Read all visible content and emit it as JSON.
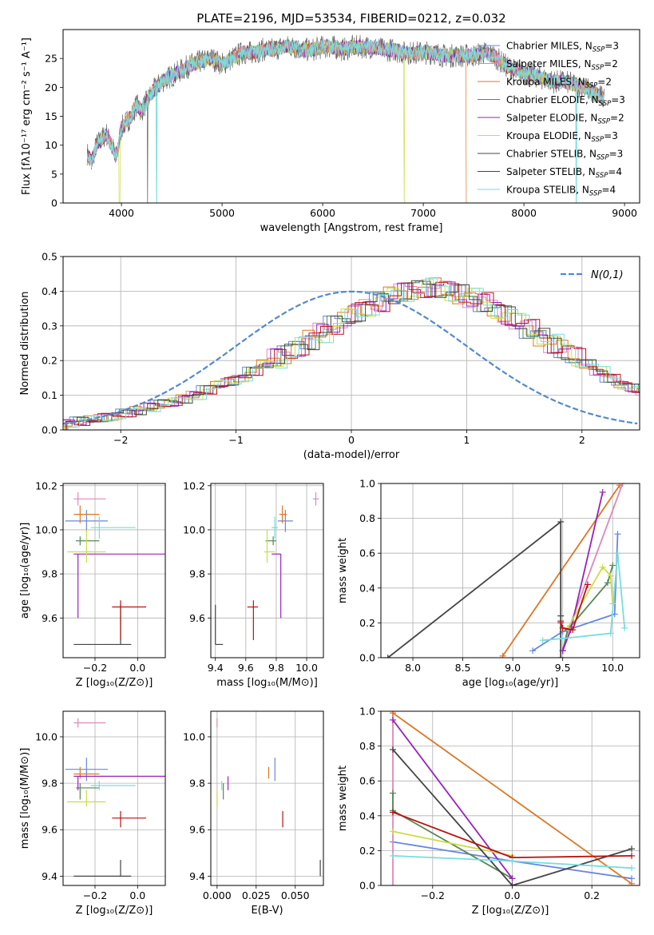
{
  "colors": [
    "#6688dd",
    "#dd88bb",
    "#dd7722",
    "#558855",
    "#9922bb",
    "#ccdd44",
    "#444444",
    "#bb1111",
    "#77dddd"
  ],
  "chart_data": [
    {
      "type": "line",
      "title": "PLATE=2196, MJD=53534, FIBERID=0212, z=0.032",
      "xlabel": "wavelength [Angstrom, rest frame]",
      "ylabel": "Flux [fλ10⁻¹⁷ erg cm⁻² s⁻¹ A⁻¹]",
      "xlim": [
        3420,
        9150
      ],
      "ylim": [
        0,
        30
      ],
      "xticks": [
        4000,
        5000,
        6000,
        7000,
        8000,
        9000
      ],
      "yticks": [
        0,
        5,
        10,
        15,
        20,
        25
      ],
      "grid": false,
      "legend_position": "top-right",
      "continuum": {
        "x": [
          3650,
          3700,
          3750,
          3800,
          3850,
          3900,
          3950,
          4000,
          4050,
          4100,
          4150,
          4200,
          4300,
          4400,
          4500,
          4600,
          4700,
          4800,
          4900,
          5000,
          5100,
          5200,
          5300,
          5400,
          5500,
          5600,
          5700,
          5800,
          5900,
          6000,
          6100,
          6200,
          6300,
          6400,
          6500,
          6600,
          6700,
          6800,
          6900,
          7000,
          7100,
          7200,
          7300,
          7400,
          7500,
          7600,
          7700,
          7800,
          7900,
          8000,
          8100,
          8200,
          8300,
          8400,
          8500,
          8600,
          8700,
          8800
        ],
        "y": [
          9,
          7,
          10,
          11,
          12,
          10,
          8,
          13,
          14,
          15,
          17,
          16,
          19,
          21,
          22,
          23,
          24,
          24.5,
          25,
          24,
          25,
          26,
          26,
          26.5,
          26.5,
          27,
          27,
          26.5,
          26.5,
          27,
          27,
          26.5,
          27,
          27,
          27,
          26.5,
          26.5,
          26,
          26,
          26,
          26,
          25.5,
          25.5,
          25.5,
          25.5,
          26,
          25.5,
          24,
          23,
          22.5,
          22,
          21.5,
          21,
          21,
          20.5,
          20,
          19,
          18
        ]
      },
      "series": [
        {
          "name": "Chabrier MILES, N_SSP=3"
        },
        {
          "name": "Salpeter MILES, N_SSP=2"
        },
        {
          "name": "Kroupa MILES, N_SSP=2"
        },
        {
          "name": "Chabrier ELODIE, N_SSP=3"
        },
        {
          "name": "Salpeter ELODIE, N_SSP=2"
        },
        {
          "name": "Kroupa ELODIE, N_SSP=3"
        },
        {
          "name": "Chabrier STELIB, N_SSP=3"
        },
        {
          "name": "Salpeter STELIB, N_SSP=4"
        },
        {
          "name": "Kroupa STELIB, N_SSP=4"
        }
      ],
      "legend_labels": [
        {
          "pre": "Chabrier MILES, N",
          "sub": "SSP",
          "post": "=3"
        },
        {
          "pre": "Salpeter MILES, N",
          "sub": "SSP",
          "post": "=2"
        },
        {
          "pre": "Kroupa MILES, N",
          "sub": "SSP",
          "post": "=2"
        },
        {
          "pre": "Chabrier ELODIE, N",
          "sub": "SSP",
          "post": "=3"
        },
        {
          "pre": "Salpeter ELODIE, N",
          "sub": "SSP",
          "post": "=2"
        },
        {
          "pre": "Kroupa ELODIE, N",
          "sub": "SSP",
          "post": "=3"
        },
        {
          "pre": "Chabrier STELIB, N",
          "sub": "SSP",
          "post": "=3"
        },
        {
          "pre": "Salpeter STELIB, N",
          "sub": "SSP",
          "post": "=4"
        },
        {
          "pre": "Kroupa STELIB, N",
          "sub": "SSP",
          "post": "=4"
        }
      ]
    },
    {
      "type": "bar",
      "xlabel": "(data-model)/error",
      "ylabel": "Normed distribution",
      "xlim": [
        -2.5,
        2.5
      ],
      "ylim": [
        0,
        0.5
      ],
      "xticks": [
        -2,
        -1,
        0,
        1,
        2
      ],
      "yticks": [
        0.0,
        0.1,
        0.2,
        0.3,
        0.4,
        0.5
      ],
      "grid": true,
      "legend_position": "top-right",
      "legend_label": "N(0,1)",
      "bin_width": 0.1,
      "bin_start": -2.5,
      "base_hist": [
        0.02,
        0.025,
        0.03,
        0.035,
        0.04,
        0.05,
        0.055,
        0.065,
        0.075,
        0.08,
        0.09,
        0.1,
        0.115,
        0.13,
        0.14,
        0.15,
        0.17,
        0.19,
        0.205,
        0.22,
        0.24,
        0.26,
        0.28,
        0.3,
        0.32,
        0.34,
        0.355,
        0.37,
        0.385,
        0.395,
        0.405,
        0.41,
        0.41,
        0.4,
        0.39,
        0.38,
        0.37,
        0.35,
        0.33,
        0.31,
        0.29,
        0.27,
        0.25,
        0.23,
        0.21,
        0.19,
        0.17,
        0.15,
        0.13,
        0.12,
        0.11,
        0.1,
        0.085,
        0.075,
        0.065,
        0.055,
        0.05,
        0.04,
        0.035,
        0.03,
        0.025,
        0.02,
        0.018,
        0.016,
        0.015,
        0.014,
        0.013,
        0.012,
        0.012,
        0.012
      ]
    },
    {
      "type": "scatter",
      "xlabel": "Z [log₁₀(Z/Z⊙)]",
      "ylabel": "age  [log₁₀(age/yr)]",
      "xlim": [
        -0.35,
        0.13
      ],
      "ylim": [
        9.42,
        10.21
      ],
      "xticks": [
        -0.2,
        0.0
      ],
      "yticks": [
        9.6,
        9.8,
        10.0,
        10.2
      ],
      "grid": true,
      "points": [
        {
          "x": -0.24,
          "y": 10.04,
          "xe": [
            0.1,
            0.1
          ],
          "ye": [
            0.05,
            0.05
          ],
          "c": 0
        },
        {
          "x": -0.28,
          "y": 10.14,
          "xe": [
            0.02,
            0.13
          ],
          "ye": [
            0.03,
            0.03
          ],
          "c": 1
        },
        {
          "x": -0.27,
          "y": 10.07,
          "xe": [
            0.03,
            0.09
          ],
          "ye": [
            0.04,
            0.04
          ],
          "c": 2
        },
        {
          "x": -0.27,
          "y": 9.95,
          "xe": [
            0.02,
            0.09
          ],
          "ye": [
            0.02,
            0.02
          ],
          "c": 3
        },
        {
          "x": -0.28,
          "y": 9.89,
          "xe": [
            0.02,
            0.43
          ],
          "ye": [
            0.29,
            0.0
          ],
          "c": 4
        },
        {
          "x": -0.24,
          "y": 9.9,
          "xe": [
            0.09,
            0.09
          ],
          "ye": [
            0.05,
            0.1
          ],
          "c": 5
        },
        {
          "x": -0.08,
          "y": 9.48,
          "xe": [
            0.22,
            0.05
          ],
          "ye": [
            0.0,
            0.18
          ],
          "c": 6
        },
        {
          "x": -0.08,
          "y": 9.65,
          "xe": [
            0.04,
            0.12
          ],
          "ye": [
            0.15,
            0.03
          ],
          "c": 7
        },
        {
          "x": -0.18,
          "y": 10.01,
          "xe": [
            0.04,
            0.17
          ],
          "ye": [
            0.05,
            0.05
          ],
          "c": 8
        }
      ]
    },
    {
      "type": "scatter",
      "xlabel": "mass [log₁₀(M/M⊙)]",
      "ylabel": "",
      "xlim": [
        9.37,
        10.11
      ],
      "ylim": [
        9.42,
        10.21
      ],
      "xticks": [
        9.4,
        9.6,
        9.8,
        10.0
      ],
      "yticks": [
        9.6,
        9.8,
        10.0,
        10.2
      ],
      "grid": true,
      "points": [
        {
          "x": 9.86,
          "y": 10.04,
          "xe": [
            0.05,
            0.05
          ],
          "ye": [
            0.05,
            0.05
          ],
          "c": 0
        },
        {
          "x": 10.06,
          "y": 10.14,
          "xe": [
            0.02,
            0.02
          ],
          "ye": [
            0.03,
            0.03
          ],
          "c": 1
        },
        {
          "x": 9.84,
          "y": 10.07,
          "xe": [
            0.02,
            0.03
          ],
          "ye": [
            0.04,
            0.04
          ],
          "c": 2
        },
        {
          "x": 9.78,
          "y": 9.95,
          "xe": [
            0.05,
            0.02
          ],
          "ye": [
            0.02,
            0.02
          ],
          "c": 3
        },
        {
          "x": 9.83,
          "y": 9.89,
          "xe": [
            0.06,
            0.0
          ],
          "ye": [
            0.29,
            0.0
          ],
          "c": 4
        },
        {
          "x": 9.74,
          "y": 9.9,
          "xe": [
            0.02,
            0.05
          ],
          "ye": [
            0.05,
            0.1
          ],
          "c": 5
        },
        {
          "x": 9.4,
          "y": 9.48,
          "xe": [
            0.0,
            0.05
          ],
          "ye": [
            0.0,
            0.18
          ],
          "c": 6
        },
        {
          "x": 9.65,
          "y": 9.65,
          "xe": [
            0.04,
            0.03
          ],
          "ye": [
            0.15,
            0.03
          ],
          "c": 7
        },
        {
          "x": 9.79,
          "y": 10.01,
          "xe": [
            0.02,
            0.02
          ],
          "ye": [
            0.05,
            0.05
          ],
          "c": 8
        }
      ]
    },
    {
      "type": "line",
      "xlabel": "age  [log₁₀(age/yr)]",
      "ylabel": "mass weight",
      "xlim": [
        7.68,
        10.27
      ],
      "ylim": [
        0,
        1
      ],
      "xticks": [
        8.0,
        8.5,
        9.0,
        9.5,
        10.0
      ],
      "yticks": [
        0.0,
        0.2,
        0.4,
        0.6,
        0.8,
        1.0
      ],
      "grid": true,
      "series": [
        {
          "c": 0,
          "x": [
            9.2,
            9.5,
            10.02,
            10.05
          ],
          "y": [
            0.04,
            0.15,
            0.25,
            0.71
          ]
        },
        {
          "c": 1,
          "x": [
            9.5,
            9.55,
            10.1
          ],
          "y": [
            0.04,
            0.15,
            1.0
          ]
        },
        {
          "c": 2,
          "x": [
            8.9,
            10.07
          ],
          "y": [
            0.01,
            0.99
          ]
        },
        {
          "c": 3,
          "x": [
            9.5,
            9.55,
            9.95,
            10.0
          ],
          "y": [
            0.04,
            0.16,
            0.43,
            0.53
          ]
        },
        {
          "c": 4,
          "x": [
            9.5,
            9.58,
            9.9
          ],
          "y": [
            0.04,
            0.16,
            0.95
          ]
        },
        {
          "c": 5,
          "x": [
            9.55,
            9.9,
            9.98,
            10.0
          ],
          "y": [
            0.17,
            0.52,
            0.47,
            0.31
          ]
        },
        {
          "c": 6,
          "x": [
            7.75,
            9.48,
            9.48,
            9.48,
            9.48
          ],
          "y": [
            0.0,
            0.78,
            0.24,
            0.21,
            0.0
          ]
        },
        {
          "c": 7,
          "x": [
            9.48,
            9.5,
            9.6,
            9.75
          ],
          "y": [
            0.2,
            0.17,
            0.16,
            0.42
          ]
        },
        {
          "c": 8,
          "x": [
            9.3,
            9.5,
            9.98,
            10.05,
            10.12
          ],
          "y": [
            0.1,
            0.11,
            0.14,
            0.6,
            0.17
          ]
        }
      ]
    },
    {
      "type": "scatter",
      "xlabel": "Z [log₁₀(Z/Z⊙)]",
      "ylabel": "mass [log₁₀(M/M⊙)]",
      "xlim": [
        -0.35,
        0.13
      ],
      "ylim": [
        9.36,
        10.11
      ],
      "xticks": [
        -0.2,
        0.0
      ],
      "yticks": [
        9.4,
        9.6,
        9.8,
        10.0
      ],
      "grid": true,
      "points": [
        {
          "x": -0.24,
          "y": 9.86,
          "xe": [
            0.1,
            0.1
          ],
          "ye": [
            0.05,
            0.05
          ],
          "c": 0
        },
        {
          "x": -0.28,
          "y": 10.06,
          "xe": [
            0.02,
            0.13
          ],
          "ye": [
            0.02,
            0.02
          ],
          "c": 1
        },
        {
          "x": -0.27,
          "y": 9.84,
          "xe": [
            0.03,
            0.09
          ],
          "ye": [
            0.02,
            0.03
          ],
          "c": 2
        },
        {
          "x": -0.27,
          "y": 9.78,
          "xe": [
            0.02,
            0.09
          ],
          "ye": [
            0.05,
            0.02
          ],
          "c": 3
        },
        {
          "x": -0.28,
          "y": 9.83,
          "xe": [
            0.02,
            0.43
          ],
          "ye": [
            0.06,
            0.0
          ],
          "c": 4
        },
        {
          "x": -0.24,
          "y": 9.72,
          "xe": [
            0.09,
            0.09
          ],
          "ye": [
            0.02,
            0.05
          ],
          "c": 5
        },
        {
          "x": -0.08,
          "y": 9.4,
          "xe": [
            0.22,
            0.05
          ],
          "ye": [
            0.0,
            0.07
          ],
          "c": 6
        },
        {
          "x": -0.08,
          "y": 9.65,
          "xe": [
            0.04,
            0.12
          ],
          "ye": [
            0.04,
            0.03
          ],
          "c": 7
        },
        {
          "x": -0.18,
          "y": 9.79,
          "xe": [
            0.04,
            0.17
          ],
          "ye": [
            0.02,
            0.02
          ],
          "c": 8
        }
      ]
    },
    {
      "type": "scatter",
      "xlabel": "E(B-V)",
      "ylabel": "",
      "xlim": [
        -0.004,
        0.068
      ],
      "ylim": [
        9.36,
        10.11
      ],
      "xticks": [
        0.0,
        0.025,
        0.05
      ],
      "yticks": [
        9.4,
        9.6,
        9.8,
        10.0
      ],
      "grid": true,
      "points": [
        {
          "x": 0.037,
          "y": 9.86,
          "ye": [
            0.05,
            0.05
          ],
          "c": 0
        },
        {
          "x": 0.0,
          "y": 10.06,
          "ye": [
            0.02,
            0.02
          ],
          "c": 1
        },
        {
          "x": 0.033,
          "y": 9.84,
          "ye": [
            0.02,
            0.03
          ],
          "c": 2
        },
        {
          "x": 0.004,
          "y": 9.78,
          "ye": [
            0.05,
            0.02
          ],
          "c": 3
        },
        {
          "x": 0.007,
          "y": 9.83,
          "ye": [
            0.06,
            0.0
          ],
          "c": 4
        },
        {
          "x": 0.0,
          "y": 9.72,
          "ye": [
            0.02,
            0.05
          ],
          "c": 5
        },
        {
          "x": 0.066,
          "y": 9.4,
          "ye": [
            0.0,
            0.07
          ],
          "c": 6
        },
        {
          "x": 0.042,
          "y": 9.65,
          "ye": [
            0.04,
            0.03
          ],
          "c": 7
        },
        {
          "x": 0.003,
          "y": 9.79,
          "ye": [
            0.02,
            0.02
          ],
          "c": 8
        }
      ]
    },
    {
      "type": "line",
      "xlabel": "Z [log₁₀(Z/Z⊙)]",
      "ylabel": "mass weight",
      "xlim": [
        -0.33,
        0.32
      ],
      "ylim": [
        0,
        1
      ],
      "xticks": [
        -0.2,
        0.0,
        0.2
      ],
      "yticks": [
        0.0,
        0.2,
        0.4,
        0.6,
        0.8,
        1.0
      ],
      "grid": true,
      "series": [
        {
          "c": 0,
          "x": [
            -0.3,
            0.0,
            0.3
          ],
          "y": [
            0.25,
            0.14,
            0.04
          ]
        },
        {
          "c": 1,
          "x": [
            -0.3,
            -0.3
          ],
          "y": [
            1.0,
            0.0
          ]
        },
        {
          "c": 2,
          "x": [
            -0.3,
            0.3
          ],
          "y": [
            0.99,
            0.01
          ]
        },
        {
          "c": 3,
          "x": [
            -0.3,
            -0.3,
            0.0
          ],
          "y": [
            0.53,
            0.43,
            0.04
          ]
        },
        {
          "c": 4,
          "x": [
            -0.3,
            0.0
          ],
          "y": [
            0.95,
            0.04
          ]
        },
        {
          "c": 5,
          "x": [
            -0.3,
            0.0
          ],
          "y": [
            0.31,
            0.17
          ]
        },
        {
          "c": 6,
          "x": [
            -0.3,
            0.0,
            0.3
          ],
          "y": [
            0.78,
            0.0,
            0.21
          ]
        },
        {
          "c": 7,
          "x": [
            -0.3,
            0.0,
            0.3
          ],
          "y": [
            0.42,
            0.16,
            0.17
          ]
        },
        {
          "c": 8,
          "x": [
            -0.3,
            0.0,
            0.3
          ],
          "y": [
            0.17,
            0.14,
            0.1
          ]
        }
      ]
    }
  ]
}
